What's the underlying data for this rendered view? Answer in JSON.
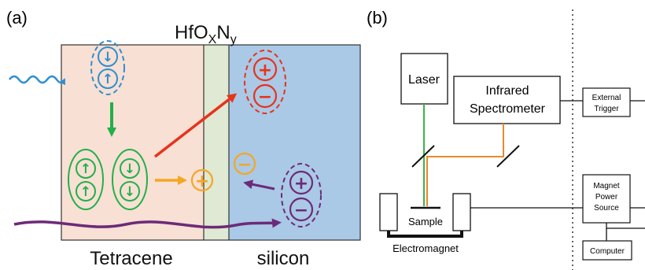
{
  "panel_a": {
    "label": "(a)",
    "material": {
      "base": "HfO",
      "sub1": "X",
      "mid": "N",
      "sub2": "y"
    },
    "tetracene_label": "Tetracene",
    "silicon_label": "silicon",
    "symbols": {
      "spin_up": "↑",
      "spin_down": "↓",
      "plus": "+",
      "minus": "−"
    },
    "colors": {
      "tetracene_bg": "#f8e0d4",
      "hfo_bg": "#dfe9d3",
      "silicon_bg": "#a9c9e6",
      "photon": "#2e8fd0",
      "singlet": "#2e8fd0",
      "triplet": "#22b04a",
      "hole": "#f5a623",
      "exciton_red": "#e8321c",
      "exciton_purple": "#6d2a78"
    }
  },
  "panel_b": {
    "label": "(b)",
    "laser": "Laser",
    "spectrometer_line1": "Infrared",
    "spectrometer_line2": "Spectrometer",
    "sample": "Sample",
    "electromagnet": "Electromagnet",
    "external_trigger_line1": "External",
    "external_trigger_line2": "Trigger",
    "magnet_power_line1": "Magnet",
    "magnet_power_line2": "Power",
    "magnet_power_line3": "Source",
    "computer": "Computer",
    "colors": {
      "laser_beam": "#3cb34a",
      "ir_beam": "#e88a2d"
    }
  }
}
